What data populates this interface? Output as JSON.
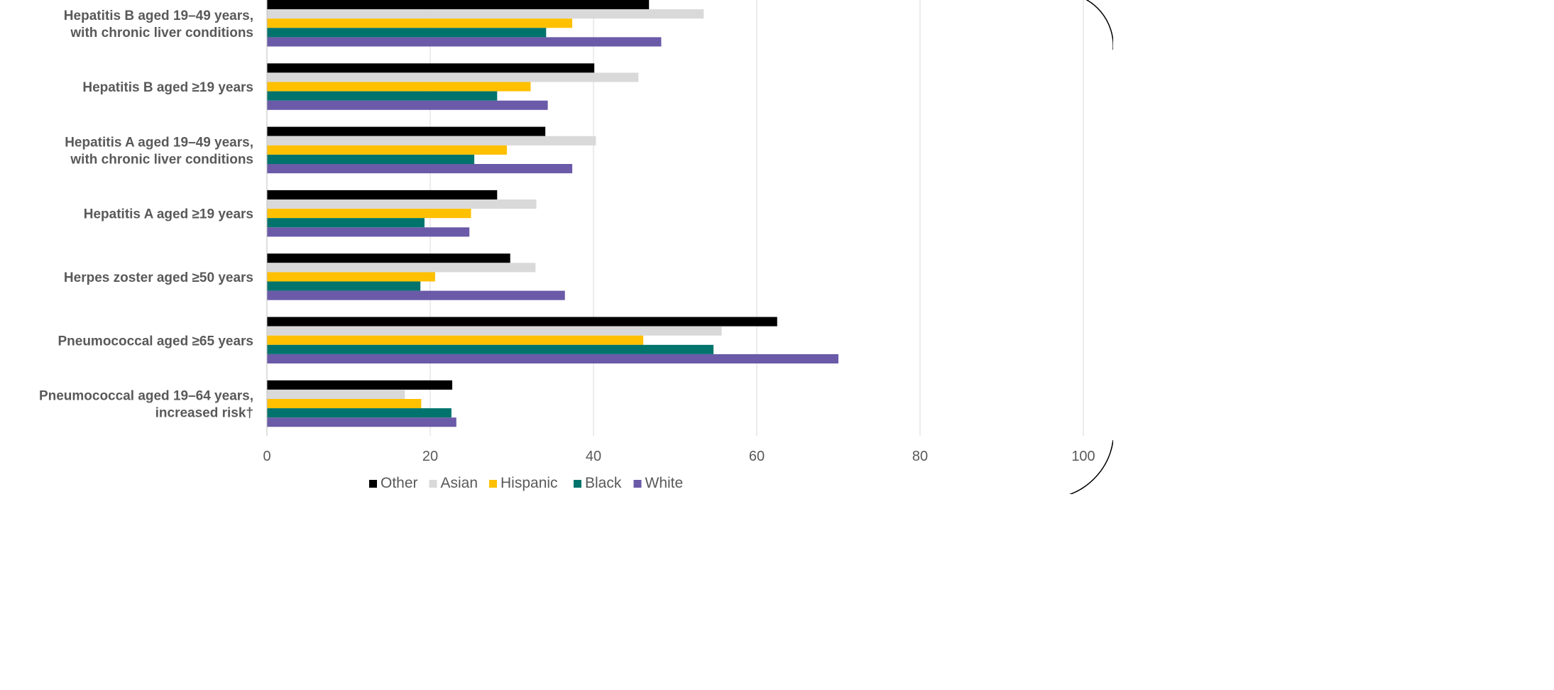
{
  "chart_data": {
    "type": "bar",
    "orientation": "horizontal",
    "categories": [
      "Hepatitis B aged 19–49 years, with chronic liver conditions",
      "Hepatitis B aged ≥19 years",
      "Hepatitis A aged 19–49 years, with chronic liver conditions",
      "Hepatitis A aged ≥19 years",
      "Herpes zoster aged ≥50 years",
      "Pneumococcal aged ≥65 years",
      "Pneumococcal aged 19–64 years, increased risk†"
    ],
    "category_label_lines": [
      [
        "Hepatitis B aged 19–49 years,",
        "with chronic liver conditions"
      ],
      [
        "Hepatitis B aged ≥19 years"
      ],
      [
        "Hepatitis A aged 19–49 years,",
        "with chronic liver conditions"
      ],
      [
        "Hepatitis A aged ≥19 years"
      ],
      [
        "Herpes zoster aged ≥50 years"
      ],
      [
        "Pneumococcal aged ≥65 years"
      ],
      [
        "Pneumococcal aged 19–64 years,",
        "increased risk†"
      ]
    ],
    "series": [
      {
        "name": "Other",
        "color": "#000000",
        "values": [
          46.8,
          40.1,
          34.1,
          28.2,
          29.8,
          62.5,
          22.7
        ]
      },
      {
        "name": "Asian",
        "color": "#d9d9d9",
        "values": [
          53.5,
          45.5,
          40.3,
          33.0,
          32.9,
          55.7,
          16.9
        ]
      },
      {
        "name": "Hispanic",
        "color": "#ffc000",
        "values": [
          37.4,
          32.3,
          29.4,
          25.0,
          20.6,
          46.1,
          18.9
        ]
      },
      {
        "name": "Black",
        "color": "#00746c",
        "values": [
          34.2,
          28.2,
          25.4,
          19.3,
          18.8,
          54.7,
          22.6
        ]
      },
      {
        "name": "White",
        "color": "#6a5aa8",
        "values": [
          48.3,
          34.4,
          37.4,
          24.8,
          36.5,
          70.0,
          23.2
        ]
      }
    ],
    "xlim": [
      0,
      100
    ],
    "xticks": [
      "0",
      "20",
      "40",
      "60",
      "80",
      "100"
    ],
    "xlabel": "",
    "ylabel": "",
    "title": "",
    "grid": "vertical",
    "legend": {
      "position": "bottom",
      "order": [
        "Other",
        "Asian",
        "Hispanic",
        "Black",
        "White"
      ]
    }
  }
}
